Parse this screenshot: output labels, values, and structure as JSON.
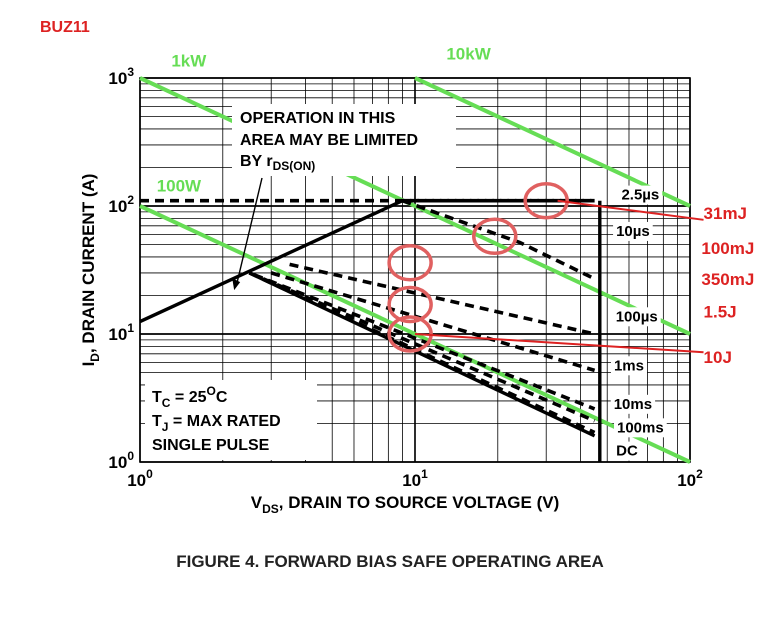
{
  "colors": {
    "grid": "#000000",
    "boundary": "#000000",
    "power_lines": "#66dd55",
    "annotation": "#dd2222",
    "circle": "#e06060",
    "background": "#ffffff"
  },
  "device_label": "BUZ11",
  "figure_caption": "FIGURE 4.  FORWARD BIAS SAFE OPERATING AREA",
  "chart_data": {
    "type": "line",
    "title": "FORWARD BIAS SAFE OPERATING AREA",
    "xscale": "log",
    "yscale": "log",
    "xlim": [
      1,
      100
    ],
    "ylim": [
      1,
      1000
    ],
    "grid": true,
    "xlabel": {
      "main": "V",
      "sub": "DS",
      "rest": ", DRAIN TO SOURCE VOLTAGE (V)"
    },
    "ylabel": {
      "main": "I",
      "sub": "D",
      "rest": ", DRAIN CURRENT (A)"
    },
    "x_ticks": [
      {
        "value": 1,
        "base": "10",
        "exp": "0"
      },
      {
        "value": 10,
        "base": "10",
        "exp": "1"
      },
      {
        "value": 100,
        "base": "10",
        "exp": "2"
      }
    ],
    "y_ticks": [
      {
        "value": 1,
        "base": "10",
        "exp": "0"
      },
      {
        "value": 10,
        "base": "10",
        "exp": "1"
      },
      {
        "value": 100,
        "base": "10",
        "exp": "2"
      },
      {
        "value": 1000,
        "base": "10",
        "exp": "3"
      }
    ],
    "conditions": {
      "tc": {
        "main": "T",
        "sub": "C",
        "rest": " = 25",
        "sup": "O",
        "unit": "C"
      },
      "tj": {
        "main": "T",
        "sub": "J",
        "rest": " = MAX RATED"
      },
      "pulse": "SINGLE PULSE"
    },
    "rds_note": {
      "line1": "OPERATION IN THIS",
      "line2": "AREA MAY BE LIMITED",
      "line3": "BY r",
      "sub": "DS(ON)",
      "arrow_to": [
        2.2,
        22
      ]
    },
    "series": [
      {
        "name": "",
        "kind": "rds_limit",
        "style": "solid",
        "points": [
          [
            1,
            12.5
          ],
          [
            9,
            110
          ]
        ]
      },
      {
        "name": "",
        "kind": "current_limit",
        "style": "dashed",
        "points": [
          [
            1,
            110
          ],
          [
            45,
            110
          ]
        ]
      },
      {
        "name": "",
        "kind": "dc_soa",
        "style": "solid",
        "points": [
          [
            2.5,
            30
          ],
          [
            45,
            1.6
          ]
        ]
      },
      {
        "name": "",
        "kind": "dc_vmax",
        "style": "solid",
        "points": [
          [
            47,
            1
          ],
          [
            47,
            110
          ]
        ]
      },
      {
        "name": "2.5µs",
        "kind": "pulse",
        "style": "dashed",
        "points": [
          [
            9,
            110
          ],
          [
            45,
            110
          ]
        ]
      },
      {
        "name": "10µs",
        "kind": "pulse",
        "style": "dashed",
        "points": [
          [
            9,
            110
          ],
          [
            24,
            52
          ],
          [
            45,
            27
          ]
        ]
      },
      {
        "name": "100µs",
        "kind": "pulse",
        "style": "dashed",
        "points": [
          [
            3.5,
            35
          ],
          [
            45,
            10
          ]
        ]
      },
      {
        "name": "1ms",
        "kind": "pulse",
        "style": "dashed",
        "points": [
          [
            3,
            30
          ],
          [
            45,
            5.2
          ]
        ]
      },
      {
        "name": "10ms",
        "kind": "pulse",
        "style": "dashed",
        "points": [
          [
            2.6,
            29
          ],
          [
            45,
            2.6
          ]
        ]
      },
      {
        "name": "100ms",
        "kind": "pulse",
        "style": "dashed",
        "points": [
          [
            2.5,
            30
          ],
          [
            45,
            2.1
          ]
        ]
      },
      {
        "name": "DC",
        "kind": "pulse",
        "style": "dashed",
        "points": [
          [
            2.5,
            30
          ],
          [
            45,
            1.7
          ]
        ]
      }
    ],
    "curve_labels": [
      {
        "text": "2.5µs",
        "x": 66,
        "y": 125
      },
      {
        "text": "10µs",
        "x": 62,
        "y": 65
      },
      {
        "text": "100µs",
        "x": 64,
        "y": 14
      },
      {
        "text": "1ms",
        "x": 60,
        "y": 5.8
      },
      {
        "text": "10ms",
        "x": 62,
        "y": 2.9
      },
      {
        "text": "100ms",
        "x": 66,
        "y": 1.9
      },
      {
        "text": "DC",
        "x": 59,
        "y": 1.25
      }
    ],
    "power_lines": [
      {
        "label": "100W",
        "watts": 100,
        "label_at": [
          1.15,
          130
        ]
      },
      {
        "label": "1kW",
        "watts": 1000,
        "label_at": [
          1.3,
          1230
        ]
      },
      {
        "label": "10kW",
        "watts": 10000,
        "label_at": [
          13,
          1400
        ]
      }
    ],
    "energy_annotations": [
      {
        "label": "31mJ",
        "circle_at": [
          30,
          110
        ],
        "label_at": [
          112,
          88
        ],
        "arrow_from": [
          112,
          78
        ],
        "arrow_to": [
          33,
          110
        ]
      },
      {
        "label": "100mJ",
        "circle_at": [
          19.5,
          58
        ],
        "label_at": [
          110,
          47
        ]
      },
      {
        "label": "350mJ",
        "circle_at": [
          9.6,
          36
        ],
        "label_at": [
          110,
          27
        ]
      },
      {
        "label": "1.5J",
        "circle_at": [
          9.6,
          17
        ],
        "label_at": [
          112,
          15
        ]
      },
      {
        "label": "10J",
        "circle_at": [
          9.6,
          10
        ],
        "label_at": [
          112,
          6.6
        ],
        "arrow_from": [
          112,
          7.2
        ],
        "arrow_to": [
          10,
          10
        ]
      }
    ]
  }
}
